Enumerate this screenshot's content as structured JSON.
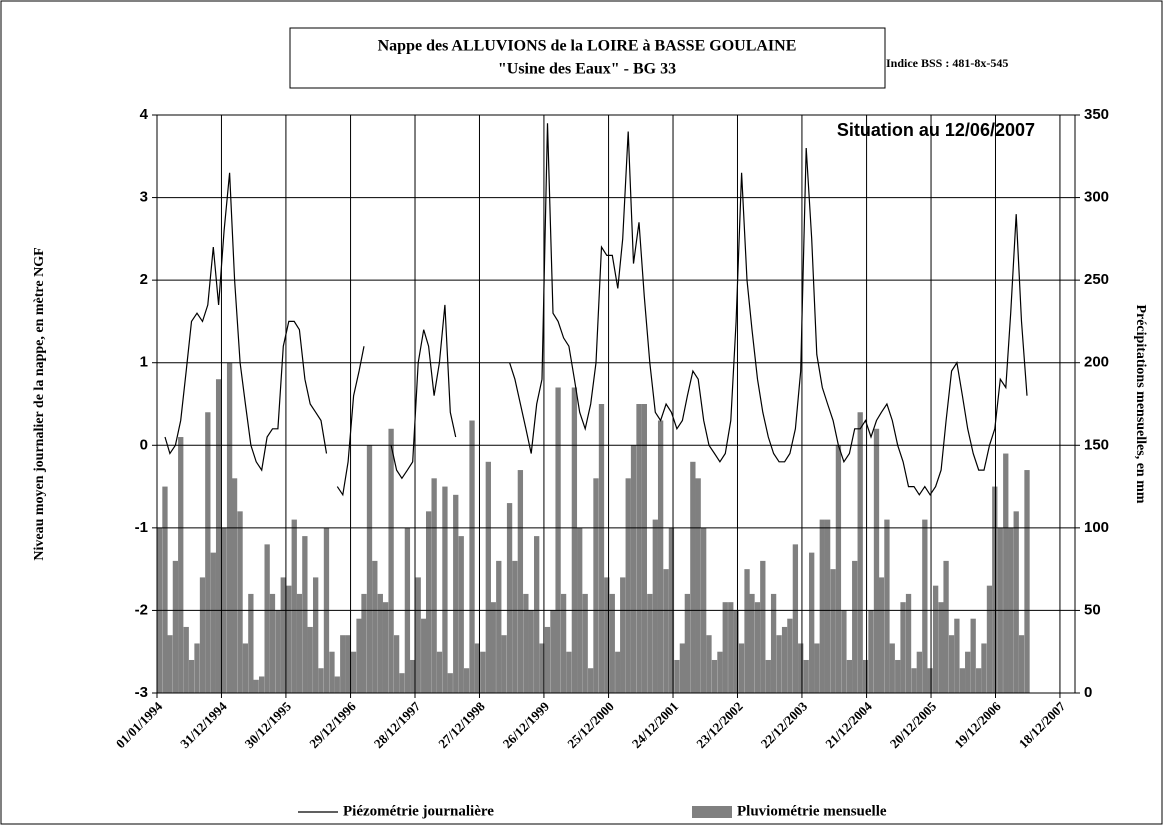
{
  "chart_data": {
    "type": "bar-line",
    "title": "Nappe des ALLUVIONS de la LOIRE à BASSE GOULAINE",
    "subtitle": "\"Usine des Eaux\" - BG 33",
    "annotations": [
      "Indice BSS : 481-8x-545",
      "Situation au 12/06/2007"
    ],
    "y_label": "Niveau moyen journalier de la nappe, en mètre NGF",
    "y2_label": "Précipitations mensuelles, en mm",
    "xlim": [
      "1994-01-01",
      "2008-03-12"
    ],
    "xticks": [
      {
        "value": "1994-01-01",
        "label": "01/01/1994"
      },
      {
        "value": "1994-12-31",
        "label": "31/12/1994"
      },
      {
        "value": "1995-12-30",
        "label": "30/12/1995"
      },
      {
        "value": "1996-12-29",
        "label": "29/12/1996"
      },
      {
        "value": "1997-12-28",
        "label": "28/12/1997"
      },
      {
        "value": "1998-12-27",
        "label": "27/12/1998"
      },
      {
        "value": "1999-12-26",
        "label": "26/12/1999"
      },
      {
        "value": "2000-12-25",
        "label": "25/12/2000"
      },
      {
        "value": "2001-12-24",
        "label": "24/12/2001"
      },
      {
        "value": "2002-12-23",
        "label": "23/12/2002"
      },
      {
        "value": "2003-12-22",
        "label": "22/12/2003"
      },
      {
        "value": "2004-12-21",
        "label": "21/12/2004"
      },
      {
        "value": "2005-12-20",
        "label": "20/12/2005"
      },
      {
        "value": "2006-12-19",
        "label": "19/12/2006"
      },
      {
        "value": "2007-12-18",
        "label": "18/12/2007"
      }
    ],
    "ylim": [
      -3,
      4
    ],
    "yticks": [
      -3,
      -2,
      -1,
      0,
      1,
      2,
      3,
      4
    ],
    "y2lim": [
      0,
      350
    ],
    "y2ticks": [
      0,
      50,
      100,
      150,
      200,
      250,
      300,
      350
    ],
    "grid": true,
    "x": [
      "1994-01-15",
      "1994-02-15",
      "1994-03-15",
      "1994-04-15",
      "1994-05-15",
      "1994-06-15",
      "1994-07-15",
      "1994-08-15",
      "1994-09-15",
      "1994-10-15",
      "1994-11-15",
      "1994-12-15",
      "1995-01-15",
      "1995-02-15",
      "1995-03-15",
      "1995-04-15",
      "1995-05-15",
      "1995-06-15",
      "1995-07-15",
      "1995-08-15",
      "1995-09-15",
      "1995-10-15",
      "1995-11-15",
      "1995-12-15",
      "1996-01-15",
      "1996-02-15",
      "1996-03-15",
      "1996-04-15",
      "1996-05-15",
      "1996-06-15",
      "1996-07-15",
      "1996-08-15",
      "1996-09-15",
      "1996-10-15",
      "1996-11-15",
      "1996-12-15",
      "1997-01-15",
      "1997-02-15",
      "1997-03-15",
      "1997-04-15",
      "1997-05-15",
      "1997-06-15",
      "1997-07-15",
      "1997-08-15",
      "1997-09-15",
      "1997-10-15",
      "1997-11-15",
      "1997-12-15",
      "1998-01-15",
      "1998-02-15",
      "1998-03-15",
      "1998-04-15",
      "1998-05-15",
      "1998-06-15",
      "1998-07-15",
      "1998-08-15",
      "1998-09-15",
      "1998-10-15",
      "1998-11-15",
      "1998-12-15",
      "1999-01-15",
      "1999-02-15",
      "1999-03-15",
      "1999-04-15",
      "1999-05-15",
      "1999-06-15",
      "1999-07-15",
      "1999-08-15",
      "1999-09-15",
      "1999-10-15",
      "1999-11-15",
      "1999-12-15",
      "2000-01-15",
      "2000-02-15",
      "2000-03-15",
      "2000-04-15",
      "2000-05-15",
      "2000-06-15",
      "2000-07-15",
      "2000-08-15",
      "2000-09-15",
      "2000-10-15",
      "2000-11-15",
      "2000-12-15",
      "2001-01-15",
      "2001-02-15",
      "2001-03-15",
      "2001-04-15",
      "2001-05-15",
      "2001-06-15",
      "2001-07-15",
      "2001-08-15",
      "2001-09-15",
      "2001-10-15",
      "2001-11-15",
      "2001-12-15",
      "2002-01-15",
      "2002-02-15",
      "2002-03-15",
      "2002-04-15",
      "2002-05-15",
      "2002-06-15",
      "2002-07-15",
      "2002-08-15",
      "2002-09-15",
      "2002-10-15",
      "2002-11-15",
      "2002-12-15",
      "2003-01-15",
      "2003-02-15",
      "2003-03-15",
      "2003-04-15",
      "2003-05-15",
      "2003-06-15",
      "2003-07-15",
      "2003-08-15",
      "2003-09-15",
      "2003-10-15",
      "2003-11-15",
      "2003-12-15",
      "2004-01-15",
      "2004-02-15",
      "2004-03-15",
      "2004-04-15",
      "2004-05-15",
      "2004-06-15",
      "2004-07-15",
      "2004-08-15",
      "2004-09-15",
      "2004-10-15",
      "2004-11-15",
      "2004-12-15",
      "2005-01-15",
      "2005-02-15",
      "2005-03-15",
      "2005-04-15",
      "2005-05-15",
      "2005-06-15",
      "2005-07-15",
      "2005-08-15",
      "2005-09-15",
      "2005-10-15",
      "2005-11-15",
      "2005-12-15",
      "2006-01-15",
      "2006-02-15",
      "2006-03-15",
      "2006-04-15",
      "2006-05-15",
      "2006-06-15",
      "2006-07-15",
      "2006-08-15",
      "2006-09-15",
      "2006-10-15",
      "2006-11-15",
      "2006-12-15",
      "2007-01-15",
      "2007-02-15",
      "2007-03-15",
      "2007-04-15",
      "2007-05-15",
      "2007-06-15"
    ],
    "series": [
      {
        "name": "Pluviométrie mensuelle",
        "type": "bar",
        "axis": "y2",
        "color": "#808080",
        "values": [
          100,
          125,
          35,
          80,
          155,
          40,
          20,
          30,
          70,
          170,
          85,
          190,
          100,
          200,
          130,
          110,
          30,
          60,
          8,
          10,
          90,
          60,
          50,
          70,
          65,
          105,
          60,
          95,
          40,
          70,
          15,
          100,
          25,
          10,
          35,
          35,
          25,
          45,
          60,
          150,
          80,
          60,
          55,
          160,
          35,
          12,
          100,
          20,
          70,
          45,
          110,
          130,
          25,
          125,
          12,
          120,
          95,
          15,
          165,
          30,
          25,
          140,
          55,
          80,
          35,
          115,
          80,
          135,
          60,
          50,
          95,
          30,
          40,
          50,
          185,
          60,
          25,
          185,
          100,
          60,
          15,
          130,
          175,
          70,
          60,
          25,
          70,
          130,
          150,
          175,
          175,
          60,
          105,
          165,
          75,
          100,
          20,
          30,
          60,
          140,
          130,
          100,
          35,
          20,
          25,
          55,
          55,
          50,
          30,
          75,
          60,
          55,
          80,
          20,
          60,
          35,
          40,
          45,
          90,
          30,
          20,
          85,
          30,
          105,
          105,
          75,
          150,
          50,
          20,
          80,
          170,
          20,
          50,
          160,
          70,
          105,
          30,
          20,
          55,
          60,
          15,
          25,
          105,
          15,
          65,
          55,
          80,
          35,
          45,
          15,
          25,
          45,
          15,
          30,
          65,
          125,
          100,
          145,
          100,
          110,
          35,
          135
        ]
      },
      {
        "name": "Piézométrie journalière",
        "type": "line",
        "color": "#000000",
        "values": [
          null,
          0.1,
          -0.1,
          0.0,
          0.3,
          0.9,
          1.5,
          1.6,
          1.5,
          1.7,
          2.4,
          1.7,
          2.6,
          3.3,
          2.0,
          1.0,
          0.5,
          0.0,
          -0.2,
          -0.3,
          0.1,
          0.2,
          0.2,
          1.2,
          1.5,
          1.5,
          1.4,
          0.8,
          0.5,
          0.4,
          0.3,
          -0.1,
          null,
          -0.5,
          -0.6,
          -0.2,
          0.6,
          0.9,
          1.2,
          null,
          null,
          null,
          null,
          0.0,
          -0.3,
          -0.4,
          -0.3,
          -0.2,
          1.0,
          1.4,
          1.2,
          0.6,
          1.0,
          1.7,
          0.4,
          0.1,
          null,
          null,
          null,
          null,
          null,
          null,
          null,
          null,
          null,
          1.0,
          0.8,
          0.5,
          0.2,
          -0.1,
          0.5,
          0.8,
          3.9,
          1.6,
          1.5,
          1.3,
          1.2,
          0.8,
          0.4,
          0.2,
          0.5,
          1.0,
          2.4,
          2.3,
          2.3,
          1.9,
          2.5,
          3.8,
          2.2,
          2.7,
          1.8,
          1.0,
          0.4,
          0.3,
          0.5,
          0.4,
          0.2,
          0.3,
          0.6,
          0.9,
          0.8,
          0.3,
          0.0,
          -0.1,
          -0.2,
          -0.1,
          0.3,
          1.5,
          3.3,
          2.0,
          1.4,
          0.8,
          0.4,
          0.1,
          -0.1,
          -0.2,
          -0.2,
          -0.1,
          0.2,
          0.9,
          3.6,
          2.5,
          1.1,
          0.7,
          0.5,
          0.3,
          0.0,
          -0.2,
          -0.1,
          0.2,
          0.2,
          0.3,
          0.1,
          0.3,
          0.4,
          0.5,
          0.3,
          0.0,
          -0.2,
          -0.5,
          -0.5,
          -0.6,
          -0.5,
          -0.6,
          -0.5,
          -0.3,
          0.3,
          0.9,
          1.0,
          0.6,
          0.2,
          -0.1,
          -0.3,
          -0.3,
          0.0,
          0.2,
          0.8,
          0.7,
          1.6,
          2.8,
          1.5,
          0.6
        ]
      }
    ]
  }
}
